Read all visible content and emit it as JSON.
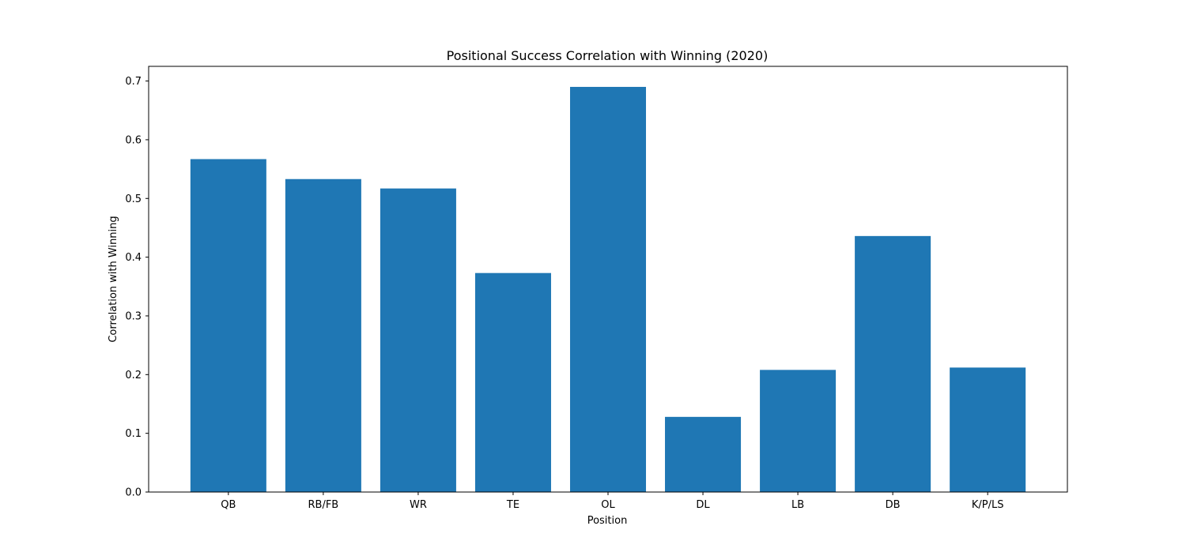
{
  "chart_data": {
    "type": "bar",
    "title": "Positional Success Correlation with Winning (2020)",
    "xlabel": "Position",
    "ylabel": "Correlation with Winning",
    "categories": [
      "QB",
      "RB/FB",
      "WR",
      "TE",
      "OL",
      "DL",
      "LB",
      "DB",
      "K/P/LS"
    ],
    "values": [
      0.567,
      0.533,
      0.517,
      0.373,
      0.69,
      0.128,
      0.208,
      0.436,
      0.212
    ],
    "ylim": [
      0,
      0.725
    ],
    "yticks": [
      0.0,
      0.1,
      0.2,
      0.3,
      0.4,
      0.5,
      0.6,
      0.7
    ],
    "ytick_labels": [
      "0.0",
      "0.1",
      "0.2",
      "0.3",
      "0.4",
      "0.5",
      "0.6",
      "0.7"
    ],
    "bar_color": "#1f77b4",
    "grid": false,
    "legend": "none"
  }
}
